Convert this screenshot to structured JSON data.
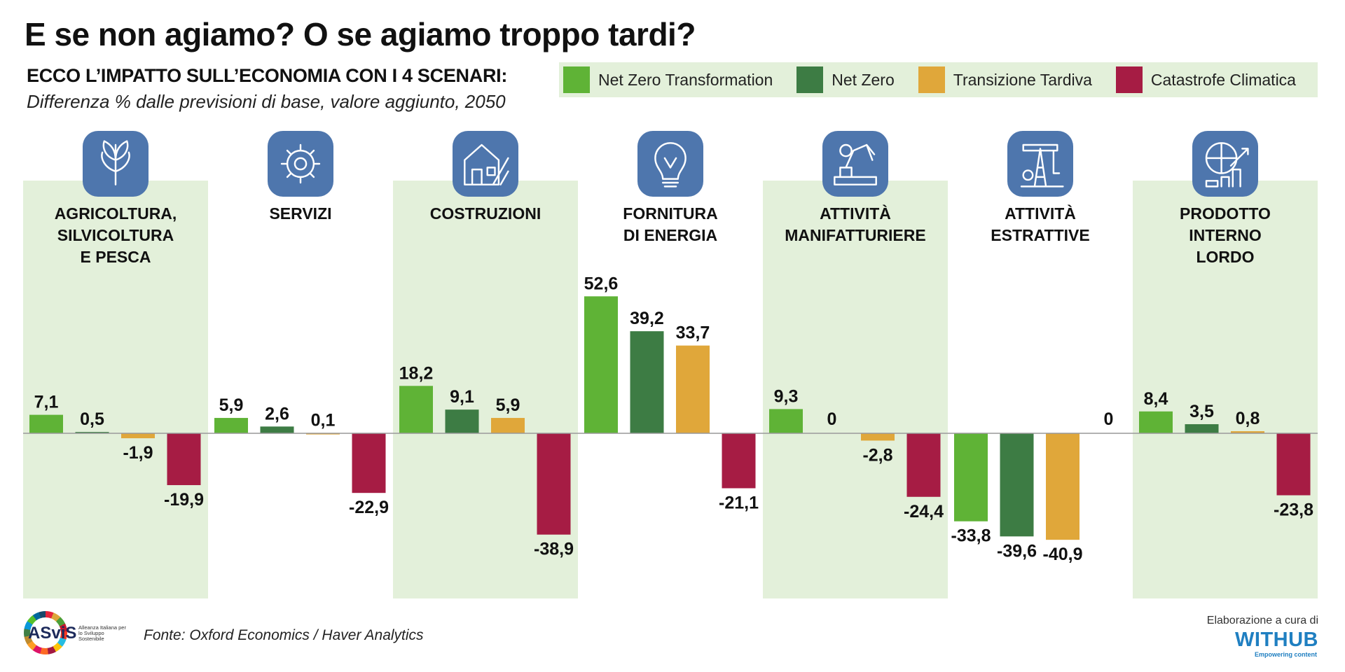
{
  "header": {
    "title": "E se non agiamo? O se agiamo troppo tardi?",
    "subtitle": "ECCO L’IMPATTO SULL’ECONOMIA CON I 4 SCENARI:",
    "description": "Differenza % dalle previsioni di base, valore aggiunto, 2050"
  },
  "legend": [
    {
      "label": "Net Zero Transformation",
      "color": "#5fb336"
    },
    {
      "label": "Net Zero",
      "color": "#3d7c44"
    },
    {
      "label": "Transizione Tardiva",
      "color": "#e0a73a"
    },
    {
      "label": "Catastrofe Climatica",
      "color": "#a61c44"
    }
  ],
  "footer": {
    "source": "Fonte: Oxford Economics / Haver Analytics",
    "asvis_logo": "ASviS",
    "asvis_tagline": "Alleanza Italiana per lo Sviluppo Sostenibile",
    "credit": "Elaborazione a cura di",
    "withub_logo": "WITHUB",
    "withub_tagline": "Empowering content"
  },
  "chart_data": {
    "type": "bar",
    "categories": [
      {
        "lines": [
          "AGRICOLTURA,",
          "SILVICOLTURA",
          "E PESCA"
        ],
        "icon": "wheat-icon",
        "shaded": true
      },
      {
        "lines": [
          "SERVIZI"
        ],
        "icon": "gear-icon",
        "shaded": false
      },
      {
        "lines": [
          "COSTRUZIONI"
        ],
        "icon": "house-building-icon",
        "shaded": true
      },
      {
        "lines": [
          "FORNITURA",
          "DI ENERGIA"
        ],
        "icon": "lightbulb-icon",
        "shaded": false
      },
      {
        "lines": [
          "ATTIVITÀ",
          "MANIFATTURIERE"
        ],
        "icon": "robot-arm-icon",
        "shaded": true
      },
      {
        "lines": [
          "ATTIVITÀ",
          "ESTRATTIVE"
        ],
        "icon": "oil-pump-icon",
        "shaded": false
      },
      {
        "lines": [
          "PRODOTTO",
          "INTERNO",
          "LORDO"
        ],
        "icon": "globe-growth-icon",
        "shaded": true
      }
    ],
    "series": [
      {
        "name": "Net Zero Transformation",
        "color": "#5fb336",
        "values": [
          7.1,
          5.9,
          18.2,
          52.6,
          9.3,
          -33.8,
          8.4
        ]
      },
      {
        "name": "Net Zero",
        "color": "#3d7c44",
        "values": [
          0.5,
          2.6,
          9.1,
          39.2,
          0,
          -39.6,
          3.5
        ]
      },
      {
        "name": "Transizione Tardiva",
        "color": "#e0a73a",
        "values": [
          -1.9,
          0.1,
          5.9,
          33.7,
          -2.8,
          -40.9,
          0.8
        ]
      },
      {
        "name": "Catastrofe Climatica",
        "color": "#a61c44",
        "values": [
          -19.9,
          -22.9,
          -38.9,
          -21.1,
          -24.4,
          0,
          -23.8
        ]
      }
    ],
    "value_labels": [
      [
        "7,1",
        "5,9",
        "18,2",
        "52,6",
        "9,3",
        "-33,8",
        "8,4"
      ],
      [
        "0,5",
        "2,6",
        "9,1",
        "39,2",
        "0",
        "-39,6",
        "3,5"
      ],
      [
        "-1,9",
        "0,1",
        "5,9",
        "33,7",
        "-2,8",
        "-40,9",
        "0,8"
      ],
      [
        "-19,9",
        "-22,9",
        "-38,9",
        "-21,1",
        "-24,4",
        "0",
        "-23,8"
      ]
    ],
    "ylim": [
      -62,
      64
    ],
    "legend_position": "top-right",
    "colors": {
      "panel_shade": "#e3f0da",
      "icon_bg": "#4e76ad",
      "baseline": "#999999"
    }
  }
}
